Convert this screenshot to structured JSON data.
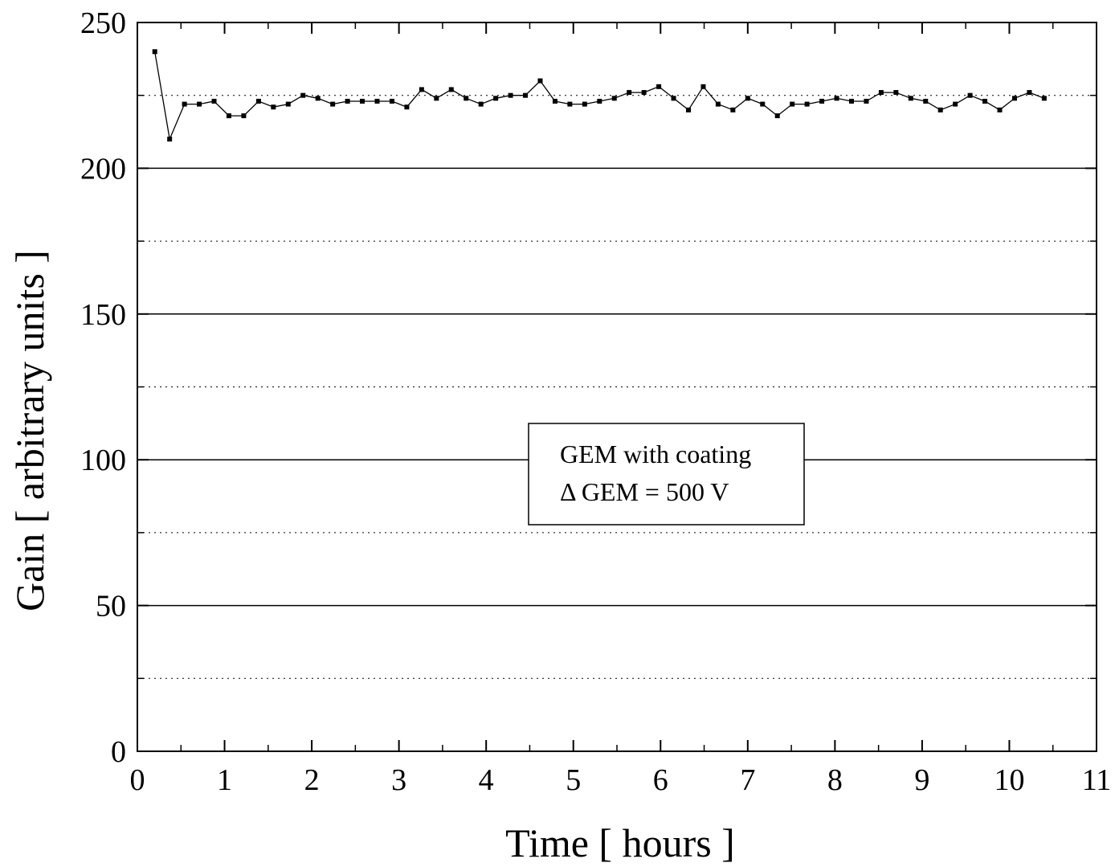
{
  "chart_data": {
    "type": "line",
    "title": "",
    "xlabel": "Time [ hours ]",
    "ylabel": "Gain [ arbitrary units ]",
    "xlim": [
      0,
      11
    ],
    "ylim": [
      0,
      250
    ],
    "x_ticks": [
      "0",
      "1",
      "2",
      "3",
      "4",
      "5",
      "6",
      "7",
      "8",
      "9",
      "10",
      "11"
    ],
    "y_ticks": [
      "0",
      "50",
      "100",
      "150",
      "200",
      "250"
    ],
    "grid": {
      "major_y": "solid",
      "minor_y": "dotted"
    },
    "legend": {
      "lines": [
        "GEM with coating",
        "Δ GEM = 500 V"
      ],
      "position": "center"
    },
    "series": [
      {
        "marker": "square",
        "x": [
          0.2,
          0.37,
          0.54,
          0.71,
          0.88,
          1.05,
          1.22,
          1.39,
          1.56,
          1.73,
          1.9,
          2.07,
          2.24,
          2.41,
          2.58,
          2.75,
          2.92,
          3.09,
          3.26,
          3.43,
          3.6,
          3.77,
          3.94,
          4.11,
          4.28,
          4.45,
          4.62,
          4.79,
          4.96,
          5.13,
          5.3,
          5.47,
          5.64,
          5.81,
          5.98,
          6.15,
          6.32,
          6.49,
          6.66,
          6.83,
          7.0,
          7.17,
          7.34,
          7.51,
          7.68,
          7.85,
          8.02,
          8.19,
          8.36,
          8.53,
          8.7,
          8.87,
          9.04,
          9.21,
          9.38,
          9.55,
          9.72,
          9.89,
          10.06,
          10.23,
          10.4
        ],
        "y": [
          240,
          210,
          222,
          222,
          223,
          218,
          218,
          223,
          221,
          222,
          225,
          224,
          222,
          223,
          223,
          223,
          223,
          221,
          227,
          224,
          227,
          224,
          222,
          224,
          225,
          225,
          230,
          223,
          222,
          222,
          223,
          224,
          226,
          226,
          228,
          224,
          220,
          228,
          222,
          220,
          224,
          222,
          218,
          222,
          222,
          223,
          224,
          223,
          223,
          226,
          226,
          224,
          223,
          220,
          222,
          225,
          223,
          220,
          224,
          226,
          224
        ]
      }
    ]
  }
}
